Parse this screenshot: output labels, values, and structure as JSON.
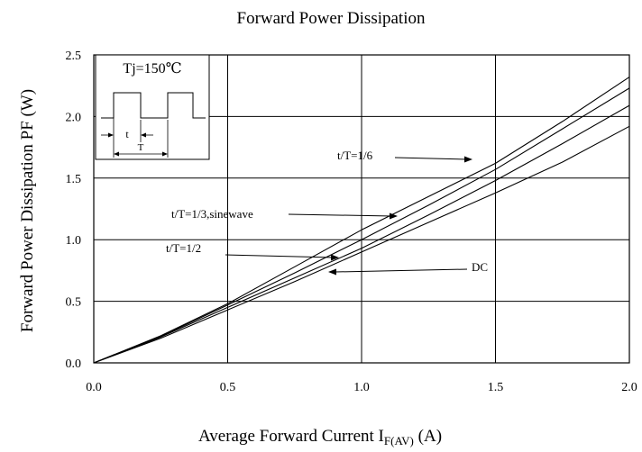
{
  "chart_data": {
    "type": "line",
    "title": "Forward Power Dissipation",
    "xlabel_main": "Average Forward Current I",
    "xlabel_sub": "F(AV)",
    "xlabel_unit": " (A)",
    "ylabel": "Forward Power Dissipation PF (W)",
    "xlim": [
      0,
      2.0
    ],
    "ylim": [
      0,
      2.5
    ],
    "x_ticks": [
      "0.0",
      "0.5",
      "1.0",
      "1.5",
      "2.0"
    ],
    "y_ticks": [
      "0.0",
      "0.5",
      "1.0",
      "1.5",
      "2.0",
      "2.5"
    ],
    "grid": true,
    "inset": {
      "label": "Tj=150℃",
      "t_label": "t",
      "T_label": "T"
    },
    "series": [
      {
        "name": "t/T=1/6",
        "x": [
          0,
          0.25,
          0.5,
          0.75,
          1.0,
          1.25,
          1.5,
          1.75,
          2.0
        ],
        "y": [
          0,
          0.22,
          0.48,
          0.78,
          1.08,
          1.35,
          1.62,
          1.96,
          2.32
        ]
      },
      {
        "name": "t/T=1/3,sinewave",
        "x": [
          0,
          0.25,
          0.5,
          0.75,
          1.0,
          1.25,
          1.5,
          1.75,
          2.0
        ],
        "y": [
          0,
          0.215,
          0.47,
          0.73,
          1.0,
          1.28,
          1.57,
          1.9,
          2.23
        ]
      },
      {
        "name": "t/T=1/2",
        "x": [
          0,
          0.25,
          0.5,
          0.75,
          1.0,
          1.25,
          1.5,
          1.75,
          2.0
        ],
        "y": [
          0,
          0.21,
          0.45,
          0.69,
          0.93,
          1.2,
          1.48,
          1.78,
          2.09
        ]
      },
      {
        "name": "DC",
        "x": [
          0,
          0.25,
          0.5,
          0.75,
          1.0,
          1.25,
          1.5,
          1.75,
          2.0
        ],
        "y": [
          0,
          0.2,
          0.43,
          0.66,
          0.9,
          1.14,
          1.38,
          1.63,
          1.92
        ]
      }
    ],
    "annotations": [
      {
        "text": "t/T=1/6",
        "series": 0
      },
      {
        "text": "t/T=1/3,sinewave",
        "series": 1
      },
      {
        "text": "t/T=1/2",
        "series": 2
      },
      {
        "text": "DC",
        "series": 3
      }
    ]
  }
}
